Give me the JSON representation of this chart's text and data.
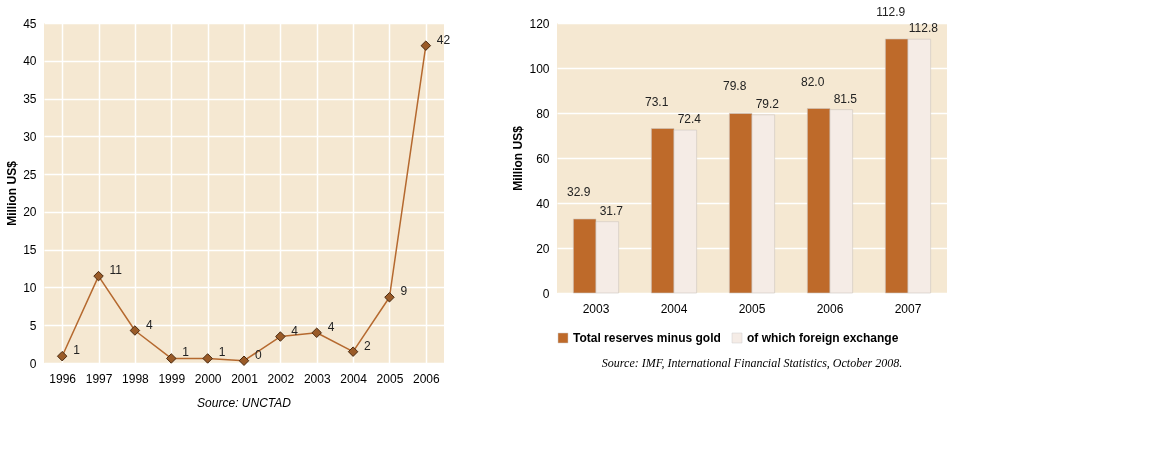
{
  "chart_data": [
    {
      "type": "line",
      "ylabel": "Million US$",
      "categories": [
        "1996",
        "1997",
        "1998",
        "1999",
        "2000",
        "2001",
        "2002",
        "2003",
        "2004",
        "2005",
        "2006"
      ],
      "series": [
        {
          "color": "#b5692f",
          "values": [
            0.9,
            11.5,
            4.3,
            0.6,
            0.6,
            0.3,
            3.5,
            4.0,
            1.5,
            8.7,
            42.0
          ],
          "value_labels": [
            "1",
            "11",
            "4",
            "1",
            "1",
            "0",
            "4",
            "4",
            "2",
            "9",
            "42"
          ]
        }
      ],
      "ylim": [
        0,
        45
      ],
      "yticks": [
        0,
        5,
        10,
        15,
        20,
        25,
        30,
        35,
        40,
        45
      ],
      "grid": true,
      "marker": "diamond",
      "annotations": [
        "Source: UNCTAD"
      ]
    },
    {
      "type": "bar",
      "ylabel": "Million US$",
      "categories": [
        "2003",
        "2004",
        "2005",
        "2006",
        "2007"
      ],
      "series": [
        {
          "name": "Total reserves minus gold",
          "color": "#be6a2a",
          "values": [
            32.9,
            73.1,
            79.8,
            82.0,
            112.9
          ],
          "value_labels": [
            "32.9",
            "73.1",
            "79.8",
            "82.0",
            "112.9"
          ]
        },
        {
          "name": "of which foreign exchange",
          "color": "#f5ece6",
          "values": [
            31.7,
            72.4,
            79.2,
            81.5,
            112.8
          ],
          "value_labels": [
            "31.7",
            "72.4",
            "79.2",
            "81.5",
            "112.8"
          ]
        }
      ],
      "ylim": [
        0,
        120
      ],
      "yticks": [
        0,
        20,
        40,
        60,
        80,
        100,
        120
      ],
      "grid": "y",
      "legend": "bottom",
      "annotations": [
        "Source: IMF, International Financial Statistics, October 2008."
      ]
    }
  ]
}
